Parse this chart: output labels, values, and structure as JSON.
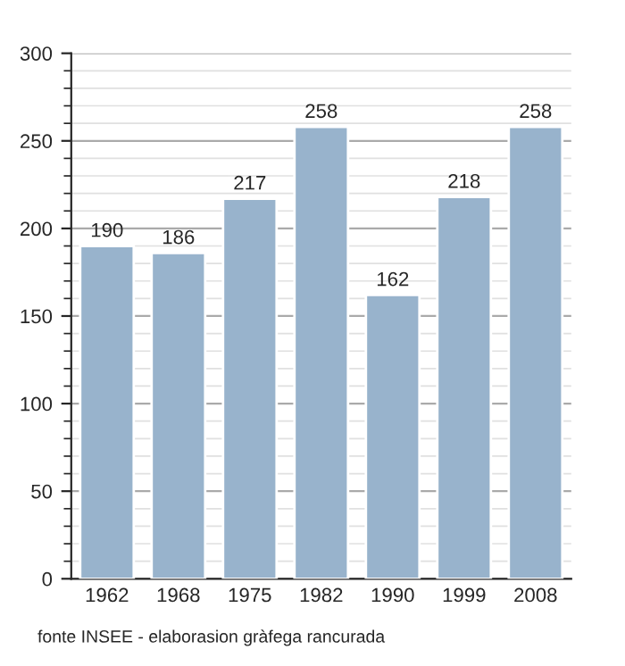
{
  "chart_data": {
    "type": "bar",
    "categories": [
      "1962",
      "1968",
      "1975",
      "1982",
      "1990",
      "1999",
      "2008"
    ],
    "values": [
      190,
      186,
      217,
      258,
      162,
      218,
      258
    ],
    "color": "#98b3cc",
    "ylim": [
      0,
      300
    ],
    "yticks": [
      0,
      50,
      100,
      150,
      200,
      250,
      300
    ],
    "grid": "y",
    "data_labels": true,
    "annotations": [
      "fonte INSEE - elaborasion gràfega rancurada"
    ]
  }
}
